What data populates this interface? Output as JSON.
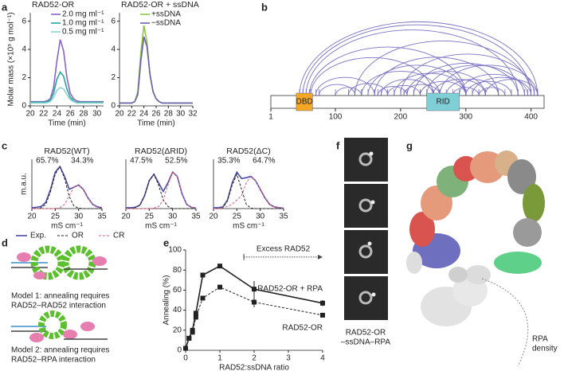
{
  "figure": {
    "panel_letters": [
      "a",
      "b",
      "c",
      "d",
      "e",
      "f",
      "g"
    ],
    "model_1": [
      "Model 1: annealing requires",
      "RAD52–RAD52 interaction"
    ],
    "model_2": [
      "Model 2: annealing requires",
      "RAD52–RPA interaction"
    ],
    "f_caption": [
      "RAD52-OR",
      "–ssDNA–RPA"
    ],
    "g_caption": [
      "RPA",
      "density"
    ]
  },
  "chart_data": [
    {
      "type": "line",
      "title": "RAD52-OR",
      "ylabel": "Molar mass (×10⁵ g mol⁻¹)",
      "xlabel": "Time (min)",
      "x": [
        20,
        20.5,
        21,
        21.5,
        22,
        22.5,
        23,
        23.5,
        24,
        24.5,
        25,
        25.5,
        26,
        26.5,
        27,
        27.5,
        28,
        28.5,
        29,
        29.5,
        30,
        30.5,
        31
      ],
      "series": [
        {
          "name": "2.0 mg ml⁻¹",
          "color": "#8a63c7",
          "values": [
            0.3,
            0.3,
            0.3,
            0.3,
            0.3,
            0.35,
            0.5,
            1.3,
            3.2,
            4.7,
            3.9,
            2.0,
            0.9,
            0.5,
            0.35,
            0.3,
            0.3,
            0.3,
            0.3,
            0.3,
            0.3,
            0.3,
            0.3
          ]
        },
        {
          "name": "1.0 mg ml⁻¹",
          "color": "#27a59a",
          "values": [
            0.25,
            0.25,
            0.25,
            0.25,
            0.25,
            0.3,
            0.4,
            0.9,
            1.9,
            2.4,
            2.1,
            1.2,
            0.6,
            0.35,
            0.25,
            0.25,
            0.25,
            0.25,
            0.25,
            0.25,
            0.25,
            0.25,
            0.25
          ]
        },
        {
          "name": "0.5 mg ml⁻¹",
          "color": "#8fd3cf",
          "values": [
            0.2,
            0.2,
            0.2,
            0.2,
            0.2,
            0.22,
            0.3,
            0.6,
            1.1,
            1.3,
            1.2,
            0.8,
            0.45,
            0.3,
            0.2,
            0.2,
            0.2,
            0.2,
            0.2,
            0.2,
            0.2,
            0.2,
            0.2
          ]
        }
      ],
      "xlim": [
        20,
        31
      ],
      "xticks": [
        20,
        22,
        24,
        26,
        28,
        30
      ],
      "ylim": [
        0,
        6.6
      ],
      "yticks": [
        0,
        2,
        4,
        6
      ],
      "legend": "upper right"
    },
    {
      "type": "line",
      "title": "RAD52-OR + ssDNA",
      "xlabel": "Time (min)",
      "x": [
        20,
        20.5,
        21,
        21.5,
        22,
        22.5,
        23,
        23.5,
        24,
        24.5,
        25,
        25.5,
        26,
        26.5,
        27,
        27.5,
        28,
        28.5,
        29,
        29.5,
        30,
        30.5,
        31,
        31.5,
        32
      ],
      "series": [
        {
          "name": "+ssDNA",
          "color": "#8cc63f",
          "values": [
            0.2,
            0.2,
            0.2,
            0.2,
            0.2,
            0.3,
            1.0,
            3.8,
            5.7,
            4.5,
            2.2,
            1.0,
            0.5,
            0.3,
            0.2,
            0.2,
            0.2,
            0.2,
            0.2,
            0.2,
            0.2,
            0.2,
            0.2,
            0.2,
            0.2
          ]
        },
        {
          "name": "−ssDNA",
          "color": "#6a5fb0",
          "values": [
            0.2,
            0.2,
            0.2,
            0.2,
            0.2,
            0.3,
            0.8,
            3.2,
            4.9,
            4.2,
            2.2,
            1.0,
            0.5,
            0.3,
            0.2,
            0.2,
            0.2,
            0.2,
            0.2,
            0.2,
            0.2,
            0.2,
            0.2,
            0.2,
            0.2
          ]
        }
      ],
      "xlim": [
        20,
        32
      ],
      "xticks": [
        20,
        22,
        24,
        26,
        28,
        30,
        32
      ],
      "ylim": [
        0,
        6.6
      ],
      "yticks": [
        0,
        2,
        4,
        6
      ],
      "legend": "upper right"
    },
    {
      "type": "crosslink",
      "xlim": [
        1,
        420
      ],
      "xticks": [
        1,
        100,
        200,
        300,
        400
      ],
      "color": "#7b72c4",
      "domains": [
        {
          "name": "DBD",
          "start": 40,
          "end": 65,
          "color": "#f5a623"
        },
        {
          "name": "RID",
          "start": 240,
          "end": 290,
          "color": "#7ecfd6"
        }
      ],
      "links": [
        [
          45,
          410
        ],
        [
          50,
          400
        ],
        [
          55,
          380
        ],
        [
          60,
          300
        ],
        [
          62,
          250
        ],
        [
          70,
          160
        ],
        [
          75,
          130
        ],
        [
          130,
          400
        ],
        [
          140,
          260
        ],
        [
          150,
          300
        ],
        [
          160,
          350
        ],
        [
          170,
          250
        ],
        [
          180,
          230
        ],
        [
          190,
          300
        ],
        [
          200,
          405
        ],
        [
          205,
          260
        ],
        [
          210,
          330
        ],
        [
          220,
          380
        ],
        [
          230,
          300
        ],
        [
          240,
          390
        ],
        [
          250,
          330
        ],
        [
          260,
          410
        ],
        [
          270,
          350
        ],
        [
          280,
          320
        ],
        [
          290,
          395
        ],
        [
          300,
          370
        ],
        [
          310,
          400
        ],
        [
          320,
          360
        ],
        [
          165,
          210
        ],
        [
          120,
          180
        ],
        [
          100,
          140
        ],
        [
          330,
          410
        ]
      ]
    },
    {
      "type": "line",
      "title": "RAD52(WT)",
      "ylabel": "m.a.u.",
      "xlabel": "mS cm⁻¹",
      "annotations": [
        "65.7%",
        "34.3%"
      ],
      "legend": "below",
      "x": [
        20,
        21,
        22,
        23,
        24,
        25,
        26,
        27,
        28,
        29,
        30,
        31,
        32,
        33,
        34,
        35
      ],
      "series": [
        {
          "name": "Exp.",
          "color": "#4b4ba8",
          "dash": false,
          "values": [
            0.02,
            0.03,
            0.05,
            0.15,
            0.45,
            0.85,
            0.98,
            0.75,
            0.45,
            0.5,
            0.55,
            0.45,
            0.25,
            0.1,
            0.04,
            0.02
          ]
        },
        {
          "name": "OR",
          "color": "#222222",
          "dash": true,
          "values": [
            0,
            0,
            0.02,
            0.1,
            0.4,
            0.8,
            0.98,
            0.7,
            0.28,
            0.06,
            0.01,
            0,
            0,
            0,
            0,
            0
          ]
        },
        {
          "name": "CR",
          "color": "#e05b7a",
          "dash": true,
          "values": [
            0,
            0,
            0,
            0,
            0,
            0,
            0.02,
            0.1,
            0.3,
            0.5,
            0.55,
            0.45,
            0.25,
            0.1,
            0.03,
            0.01
          ]
        }
      ],
      "xlim": [
        20,
        35
      ],
      "xticks": [
        20,
        25,
        30,
        35
      ],
      "ylim": [
        0,
        1.15
      ]
    },
    {
      "type": "line",
      "title": "RAD52(ΔRID)",
      "xlabel": "mS cm⁻¹",
      "annotations": [
        "47.5%",
        "52.5%"
      ],
      "x": [
        20,
        21,
        22,
        23,
        24,
        25,
        26,
        27,
        28,
        29,
        30,
        31,
        32,
        33,
        34,
        35
      ],
      "series": [
        {
          "color": "#4b4ba8",
          "dash": false,
          "values": [
            0.02,
            0.02,
            0.03,
            0.08,
            0.3,
            0.65,
            0.8,
            0.6,
            0.4,
            0.6,
            0.85,
            0.75,
            0.35,
            0.1,
            0.03,
            0.01
          ]
        },
        {
          "color": "#222222",
          "dash": true,
          "values": [
            0,
            0,
            0.02,
            0.08,
            0.3,
            0.65,
            0.8,
            0.55,
            0.2,
            0.05,
            0,
            0,
            0,
            0,
            0,
            0
          ]
        },
        {
          "color": "#e05b7a",
          "dash": true,
          "values": [
            0,
            0,
            0,
            0,
            0,
            0,
            0.01,
            0.05,
            0.2,
            0.55,
            0.85,
            0.75,
            0.35,
            0.1,
            0.03,
            0.01
          ]
        }
      ],
      "xlim": [
        20,
        35
      ],
      "xticks": [
        20,
        25,
        30,
        35
      ],
      "ylim": [
        0,
        1.15
      ]
    },
    {
      "type": "line",
      "title": "RAD52(ΔC)",
      "xlabel": "mS cm⁻¹",
      "annotations": [
        "35.3%",
        "64.7%"
      ],
      "x": [
        20,
        21,
        22,
        23,
        24,
        25,
        26,
        27,
        28,
        29,
        30,
        31,
        32,
        33,
        34,
        35
      ],
      "series": [
        {
          "color": "#4b4ba8",
          "dash": false,
          "values": [
            0.02,
            0.02,
            0.04,
            0.2,
            0.6,
            0.85,
            0.7,
            0.72,
            0.75,
            0.65,
            0.45,
            0.25,
            0.1,
            0.04,
            0.02,
            0.01
          ]
        },
        {
          "color": "#222222",
          "dash": true,
          "values": [
            0,
            0,
            0.02,
            0.18,
            0.55,
            0.8,
            0.45,
            0.1,
            0.01,
            0,
            0,
            0,
            0,
            0,
            0,
            0
          ]
        },
        {
          "color": "#e05b7a",
          "dash": true,
          "values": [
            0,
            0,
            0.02,
            0.05,
            0.1,
            0.2,
            0.3,
            0.6,
            0.75,
            0.65,
            0.45,
            0.25,
            0.1,
            0.04,
            0.02,
            0.01
          ]
        }
      ],
      "xlim": [
        20,
        35
      ],
      "xticks": [
        20,
        25,
        30,
        35
      ],
      "ylim": [
        0,
        1.15
      ]
    },
    {
      "type": "errorline",
      "ylabel": "Annealing (%)",
      "xlabel": "RAD52:ssDNA ratio",
      "x": [
        0,
        0.1,
        0.2,
        0.3,
        0.5,
        1,
        2,
        4
      ],
      "series": [
        {
          "name": "RAD52-OR + RPA",
          "color": "#222222",
          "dash": false,
          "values": [
            2,
            12,
            20,
            37,
            75,
            84,
            61,
            47
          ],
          "errors": [
            0,
            1,
            1,
            2,
            2,
            2,
            8,
            3
          ]
        },
        {
          "name": "RAD52-OR",
          "color": "#222222",
          "dash": true,
          "values": [
            2,
            12,
            18,
            33,
            52,
            63,
            48,
            35
          ],
          "errors": [
            0,
            1,
            1,
            2,
            2,
            2,
            5,
            2
          ]
        }
      ],
      "arrow": {
        "label": "Excess RAD52",
        "from": 1.7,
        "to": 4,
        "y": 93
      },
      "xlim": [
        0,
        4
      ],
      "xticks": [
        0,
        1,
        2,
        3,
        4
      ],
      "ylim": [
        0,
        100
      ],
      "yticks": [
        0,
        20,
        40,
        60,
        80,
        100
      ]
    }
  ]
}
